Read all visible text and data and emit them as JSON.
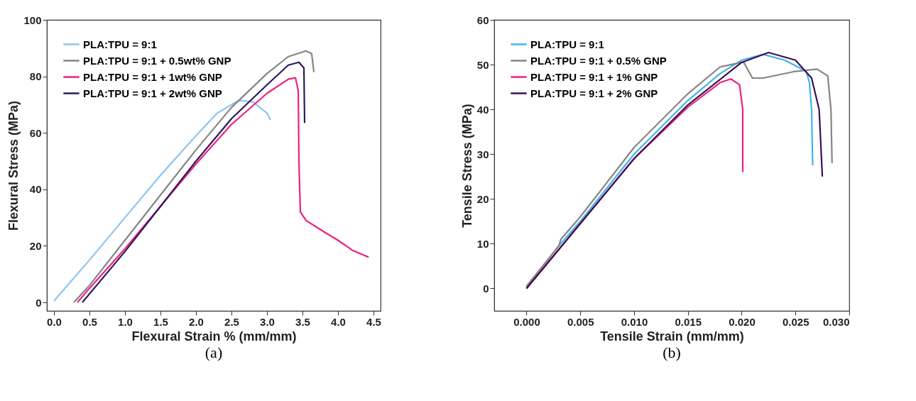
{
  "chart_data": [
    {
      "type": "line",
      "xlabel": "Flexural Strain % (mm/mm)",
      "ylabel": "Flexural Stress (MPa)",
      "annotations": [
        "(a)"
      ],
      "legend": "top left",
      "grid": false,
      "line_style": "solid",
      "marker": "none",
      "xlim": [
        -0.1,
        4.6
      ],
      "ylim": [
        -3,
        100
      ],
      "xticks": [
        {
          "value": 0,
          "label": "0.0"
        },
        0.5,
        {
          "value": 1,
          "label": "1.0"
        },
        1.5,
        {
          "value": 2,
          "label": "2.0"
        },
        2.5,
        {
          "value": 3,
          "label": "3.0"
        },
        3.5,
        {
          "value": 4,
          "label": "4.0"
        },
        4.5
      ],
      "yticks": [
        0,
        20,
        40,
        60,
        80,
        100
      ],
      "series": [
        {
          "name": "PLA:TPU = 9:1",
          "color": "#8cc4f0",
          "x": [
            0,
            0.5,
            1.0,
            1.5,
            2.0,
            2.3,
            2.6,
            2.8,
            3.0,
            3.05
          ],
          "values": [
            0.5,
            15,
            30,
            45,
            59,
            67,
            71.5,
            71,
            67,
            64.5
          ]
        },
        {
          "name": "PLA:TPU = 9:1 + 0.5wt% GNP",
          "color": "#858585",
          "x": [
            0.28,
            0.5,
            1.0,
            1.5,
            2.0,
            2.5,
            3.0,
            3.3,
            3.55,
            3.63,
            3.66
          ],
          "values": [
            0,
            6,
            22,
            38,
            54,
            69,
            81,
            87,
            89,
            88,
            81.5
          ]
        },
        {
          "name": "PLA:TPU = 9:1 + 1wt% GNP",
          "color": "#f0207f",
          "x": [
            0.33,
            0.5,
            1.0,
            1.5,
            2.0,
            2.5,
            3.0,
            3.3,
            3.4,
            3.44,
            3.45,
            3.47,
            3.55,
            3.8,
            4.0,
            4.2,
            4.43
          ],
          "values": [
            0,
            5,
            19,
            34,
            49,
            63,
            74,
            79,
            79.5,
            75,
            50,
            32,
            29,
            25,
            22,
            18.5,
            16
          ]
        },
        {
          "name": "PLA:TPU = 9:1 + 2wt% GNP",
          "color": "#2d1a5e",
          "x": [
            0.4,
            1.0,
            1.5,
            2.0,
            2.5,
            3.0,
            3.3,
            3.45,
            3.52,
            3.53
          ],
          "values": [
            0,
            18,
            34,
            50,
            65,
            77,
            84,
            85,
            83,
            63.5
          ]
        }
      ]
    },
    {
      "type": "line",
      "xlabel": "Tensile Strain (mm/mm)",
      "ylabel": "Tensile Stress (MPa)",
      "annotations": [
        "(b)"
      ],
      "legend": "top left",
      "grid": false,
      "line_style": "solid",
      "marker": "none",
      "xlim": [
        -0.003,
        0.03
      ],
      "ylim": [
        -5,
        60
      ],
      "xticks": [
        {
          "value": 0,
          "label": "0.000"
        },
        0.005,
        {
          "value": 0.01,
          "label": "0.010"
        },
        0.015,
        {
          "value": 0.02,
          "label": "0.020"
        },
        0.025,
        {
          "value": 0.03,
          "label": "0.030"
        }
      ],
      "yticks": [
        0,
        10,
        20,
        30,
        40,
        50,
        60
      ],
      "series": [
        {
          "name": "PLA:TPU = 9:1",
          "color": "#3fb4ec",
          "x": [
            0,
            0.003,
            0.005,
            0.01,
            0.015,
            0.018,
            0.02,
            0.022,
            0.024,
            0.026,
            0.0263,
            0.0265,
            0.0266
          ],
          "values": [
            0.3,
            9.5,
            15,
            30,
            42,
            48,
            51,
            52.3,
            51,
            48.5,
            46,
            40,
            27.5
          ]
        },
        {
          "name": "PLA:TPU = 9:1 + 0.5% GNP",
          "color": "#858585",
          "x": [
            0,
            0.003,
            0.0032,
            0.005,
            0.01,
            0.015,
            0.018,
            0.02,
            0.0202,
            0.021,
            0.022,
            0.025,
            0.027,
            0.028,
            0.0283,
            0.0284
          ],
          "values": [
            0.5,
            9.5,
            11,
            16,
            31.5,
            43.5,
            49.5,
            50.5,
            50.5,
            47,
            47,
            48.5,
            49,
            47.5,
            40,
            28
          ]
        },
        {
          "name": "PLA:TPU = 9:1 + 1% GNP",
          "color": "#f0207f",
          "x": [
            0,
            0.005,
            0.01,
            0.015,
            0.018,
            0.019,
            0.0198,
            0.0201,
            0.0201
          ],
          "values": [
            0,
            14.5,
            29,
            40.5,
            46,
            46.8,
            45.5,
            40,
            26
          ]
        },
        {
          "name": "PLA:TPU = 9:1 + 2% GNP",
          "color": "#3d1053",
          "x": [
            0,
            0.005,
            0.01,
            0.015,
            0.02,
            0.0225,
            0.025,
            0.0265,
            0.0272,
            0.0275
          ],
          "values": [
            0,
            14.5,
            29,
            41,
            50.5,
            52.7,
            51,
            47,
            40,
            25
          ]
        }
      ]
    }
  ]
}
